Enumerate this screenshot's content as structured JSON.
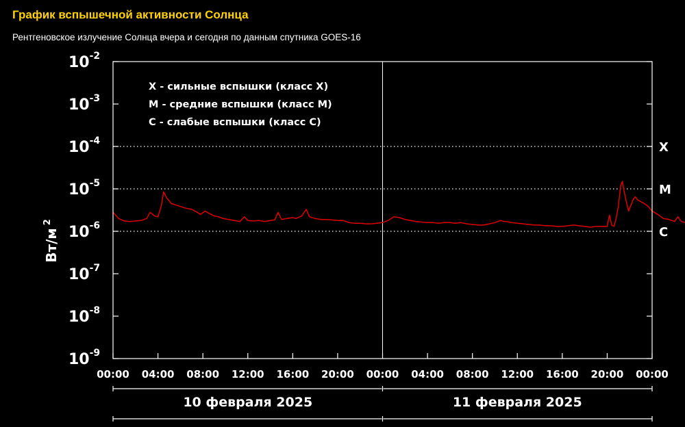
{
  "header": {
    "title": "График вспышечной активности Солнца",
    "subtitle": "Рентгеновское излучение Солнца вчера и сегодня по данным спутника GOES-16"
  },
  "colors": {
    "background": "#000000",
    "title": "#ffd200",
    "text": "#ffffff",
    "series": "#e00000",
    "grid": "#ffffff"
  },
  "chart_data": {
    "type": "line",
    "y_scale": "log",
    "ylabel_base": "Вт/м",
    "ylabel_sup": "2",
    "y_ticks": [
      {
        "value": 0.01,
        "base": "10",
        "exp": "-2"
      },
      {
        "value": 0.001,
        "base": "10",
        "exp": "-3"
      },
      {
        "value": 0.0001,
        "base": "10",
        "exp": "-4"
      },
      {
        "value": 1e-05,
        "base": "10",
        "exp": "-5"
      },
      {
        "value": 1e-06,
        "base": "10",
        "exp": "-6"
      },
      {
        "value": 1e-07,
        "base": "10",
        "exp": "-7"
      },
      {
        "value": 1e-08,
        "base": "10",
        "exp": "-8"
      },
      {
        "value": 1e-09,
        "base": "10",
        "exp": "-9"
      }
    ],
    "x_ticks": [
      "00:00",
      "04:00",
      "08:00",
      "12:00",
      "16:00",
      "20:00",
      "00:00",
      "04:00",
      "08:00",
      "12:00",
      "16:00",
      "20:00",
      "00:00"
    ],
    "legend": [
      "X - сильные вспышки (класс X)",
      "M - средние вспышки (класс M)",
      "C - слабые вспышки (класс C)"
    ],
    "class_levels": [
      {
        "label": "X",
        "value": 0.0001
      },
      {
        "label": "M",
        "value": 1e-05
      },
      {
        "label": "C",
        "value": 1e-06
      }
    ],
    "days": [
      "10 февраля 2025",
      "11 февраля 2025"
    ],
    "series": [
      {
        "points": [
          [
            0.0,
            2.8e-06
          ],
          [
            0.5,
            2e-06
          ],
          [
            1.0,
            1.75e-06
          ],
          [
            1.5,
            1.7e-06
          ],
          [
            2.0,
            1.75e-06
          ],
          [
            2.5,
            1.8e-06
          ],
          [
            3.0,
            2e-06
          ],
          [
            3.3,
            2.8e-06
          ],
          [
            3.7,
            2.3e-06
          ],
          [
            4.0,
            2.2e-06
          ],
          [
            4.3,
            4e-06
          ],
          [
            4.5,
            8.5e-06
          ],
          [
            4.8,
            6e-06
          ],
          [
            5.2,
            4.5e-06
          ],
          [
            5.8,
            4e-06
          ],
          [
            6.5,
            3.5e-06
          ],
          [
            7.0,
            3.3e-06
          ],
          [
            7.5,
            2.8e-06
          ],
          [
            7.8,
            2.5e-06
          ],
          [
            8.2,
            3e-06
          ],
          [
            8.6,
            2.6e-06
          ],
          [
            9.0,
            2.3e-06
          ],
          [
            9.4,
            2.2e-06
          ],
          [
            9.8,
            2e-06
          ],
          [
            10.3,
            1.9e-06
          ],
          [
            10.8,
            1.8e-06
          ],
          [
            11.3,
            1.7e-06
          ],
          [
            11.7,
            2.2e-06
          ],
          [
            12.0,
            1.8e-06
          ],
          [
            12.5,
            1.75e-06
          ],
          [
            13.0,
            1.8e-06
          ],
          [
            13.5,
            1.7e-06
          ],
          [
            14.0,
            1.8e-06
          ],
          [
            14.4,
            1.85e-06
          ],
          [
            14.7,
            2.8e-06
          ],
          [
            15.0,
            1.9e-06
          ],
          [
            15.5,
            2e-06
          ],
          [
            16.0,
            2.1e-06
          ],
          [
            16.3,
            2e-06
          ],
          [
            16.8,
            2.3e-06
          ],
          [
            17.2,
            3.3e-06
          ],
          [
            17.5,
            2.2e-06
          ],
          [
            18.0,
            2e-06
          ],
          [
            18.5,
            1.9e-06
          ],
          [
            19.0,
            1.9e-06
          ],
          [
            19.5,
            1.85e-06
          ],
          [
            20.0,
            1.8e-06
          ],
          [
            20.5,
            1.8e-06
          ],
          [
            21.0,
            1.6e-06
          ],
          [
            21.5,
            1.55e-06
          ],
          [
            22.0,
            1.55e-06
          ],
          [
            22.5,
            1.5e-06
          ],
          [
            23.0,
            1.5e-06
          ],
          [
            23.5,
            1.55e-06
          ],
          [
            24.0,
            1.6e-06
          ],
          [
            24.5,
            1.8e-06
          ],
          [
            25.0,
            2.2e-06
          ],
          [
            25.5,
            2.1e-06
          ],
          [
            26.0,
            1.9e-06
          ],
          [
            26.5,
            1.8e-06
          ],
          [
            27.0,
            1.7e-06
          ],
          [
            27.5,
            1.65e-06
          ],
          [
            28.0,
            1.6e-06
          ],
          [
            28.5,
            1.6e-06
          ],
          [
            29.0,
            1.55e-06
          ],
          [
            29.5,
            1.6e-06
          ],
          [
            30.0,
            1.6e-06
          ],
          [
            30.5,
            1.55e-06
          ],
          [
            31.0,
            1.6e-06
          ],
          [
            31.5,
            1.5e-06
          ],
          [
            32.0,
            1.45e-06
          ],
          [
            32.5,
            1.4e-06
          ],
          [
            33.0,
            1.4e-06
          ],
          [
            33.5,
            1.5e-06
          ],
          [
            34.0,
            1.6e-06
          ],
          [
            34.5,
            1.8e-06
          ],
          [
            34.8,
            1.7e-06
          ],
          [
            35.0,
            1.7e-06
          ],
          [
            35.5,
            1.6e-06
          ],
          [
            36.0,
            1.55e-06
          ],
          [
            36.5,
            1.5e-06
          ],
          [
            37.0,
            1.45e-06
          ],
          [
            37.5,
            1.4e-06
          ],
          [
            38.0,
            1.4e-06
          ],
          [
            38.5,
            1.35e-06
          ],
          [
            39.0,
            1.35e-06
          ],
          [
            39.5,
            1.3e-06
          ],
          [
            40.0,
            1.3e-06
          ],
          [
            40.5,
            1.35e-06
          ],
          [
            41.0,
            1.4e-06
          ],
          [
            41.5,
            1.35e-06
          ],
          [
            42.0,
            1.3e-06
          ],
          [
            42.5,
            1.25e-06
          ],
          [
            43.0,
            1.3e-06
          ],
          [
            43.5,
            1.3e-06
          ],
          [
            44.0,
            1.3e-06
          ],
          [
            44.2,
            2.4e-06
          ],
          [
            44.4,
            1.4e-06
          ],
          [
            44.6,
            1.3e-06
          ],
          [
            44.8,
            2e-06
          ],
          [
            45.0,
            4e-06
          ],
          [
            45.2,
            1.2e-05
          ],
          [
            45.35,
            1.5e-05
          ],
          [
            45.5,
            9e-06
          ],
          [
            45.7,
            5e-06
          ],
          [
            45.9,
            3e-06
          ],
          [
            46.1,
            4e-06
          ],
          [
            46.3,
            5.5e-06
          ],
          [
            46.5,
            6.5e-06
          ],
          [
            46.7,
            5.5e-06
          ],
          [
            47.0,
            5e-06
          ],
          [
            47.3,
            4.5e-06
          ],
          [
            47.6,
            4e-06
          ],
          [
            48.0,
            3e-06
          ],
          [
            48.5,
            2.5e-06
          ],
          [
            49.0,
            2e-06
          ],
          [
            49.5,
            1.9e-06
          ],
          [
            50.0,
            1.7e-06
          ],
          [
            50.3,
            2.2e-06
          ],
          [
            50.6,
            1.7e-06
          ],
          [
            51.0,
            1.6e-06
          ],
          [
            51.5,
            1.5e-06
          ],
          [
            52.0,
            1.45e-06
          ]
        ]
      }
    ]
  }
}
